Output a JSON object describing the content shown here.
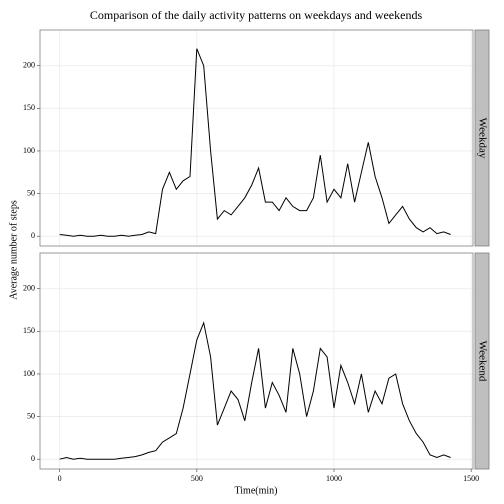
{
  "chart_data": {
    "type": "line",
    "title": "Comparison of the daily activity patterns on weekdays and weekends",
    "x_label": "Time(min)",
    "y_label": "Average number of steps",
    "x": [
      0,
      25,
      50,
      75,
      100,
      125,
      150,
      175,
      200,
      225,
      250,
      275,
      300,
      325,
      350,
      375,
      400,
      425,
      450,
      475,
      500,
      525,
      550,
      575,
      600,
      625,
      650,
      675,
      700,
      725,
      750,
      775,
      800,
      825,
      850,
      875,
      900,
      925,
      950,
      975,
      1000,
      1025,
      1050,
      1075,
      1100,
      1125,
      1150,
      1175,
      1200,
      1225,
      1250,
      1275,
      1300,
      1325,
      1350,
      1375,
      1400,
      1425
    ],
    "series": [
      {
        "name": "Weekday",
        "color": "#000000",
        "values": [
          2,
          1,
          0,
          1,
          0,
          0,
          1,
          0,
          0,
          1,
          0,
          1,
          2,
          5,
          3,
          55,
          75,
          55,
          65,
          70,
          220,
          200,
          100,
          20,
          30,
          25,
          35,
          45,
          60,
          80,
          40,
          40,
          30,
          45,
          35,
          30,
          30,
          45,
          95,
          40,
          55,
          45,
          85,
          40,
          75,
          110,
          70,
          45,
          15,
          25,
          35,
          20,
          10,
          5,
          10,
          3,
          5,
          2
        ]
      },
      {
        "name": "Weekend",
        "color": "#000000",
        "values": [
          0,
          2,
          0,
          1,
          0,
          0,
          0,
          0,
          0,
          1,
          2,
          3,
          5,
          8,
          10,
          20,
          25,
          30,
          60,
          100,
          140,
          160,
          120,
          40,
          60,
          80,
          70,
          45,
          90,
          130,
          60,
          90,
          75,
          55,
          130,
          100,
          50,
          80,
          130,
          120,
          60,
          110,
          90,
          65,
          100,
          55,
          80,
          65,
          95,
          100,
          65,
          45,
          30,
          20,
          5,
          2,
          5,
          2
        ]
      }
    ],
    "xlim": [
      -71.75,
      1506.75
    ],
    "ylim": [
      -11.5,
      241.9
    ],
    "xticks": [
      0,
      500,
      1000,
      1500
    ],
    "yticks": [
      0,
      50,
      100,
      150,
      200
    ],
    "grid": true,
    "facet": true
  }
}
